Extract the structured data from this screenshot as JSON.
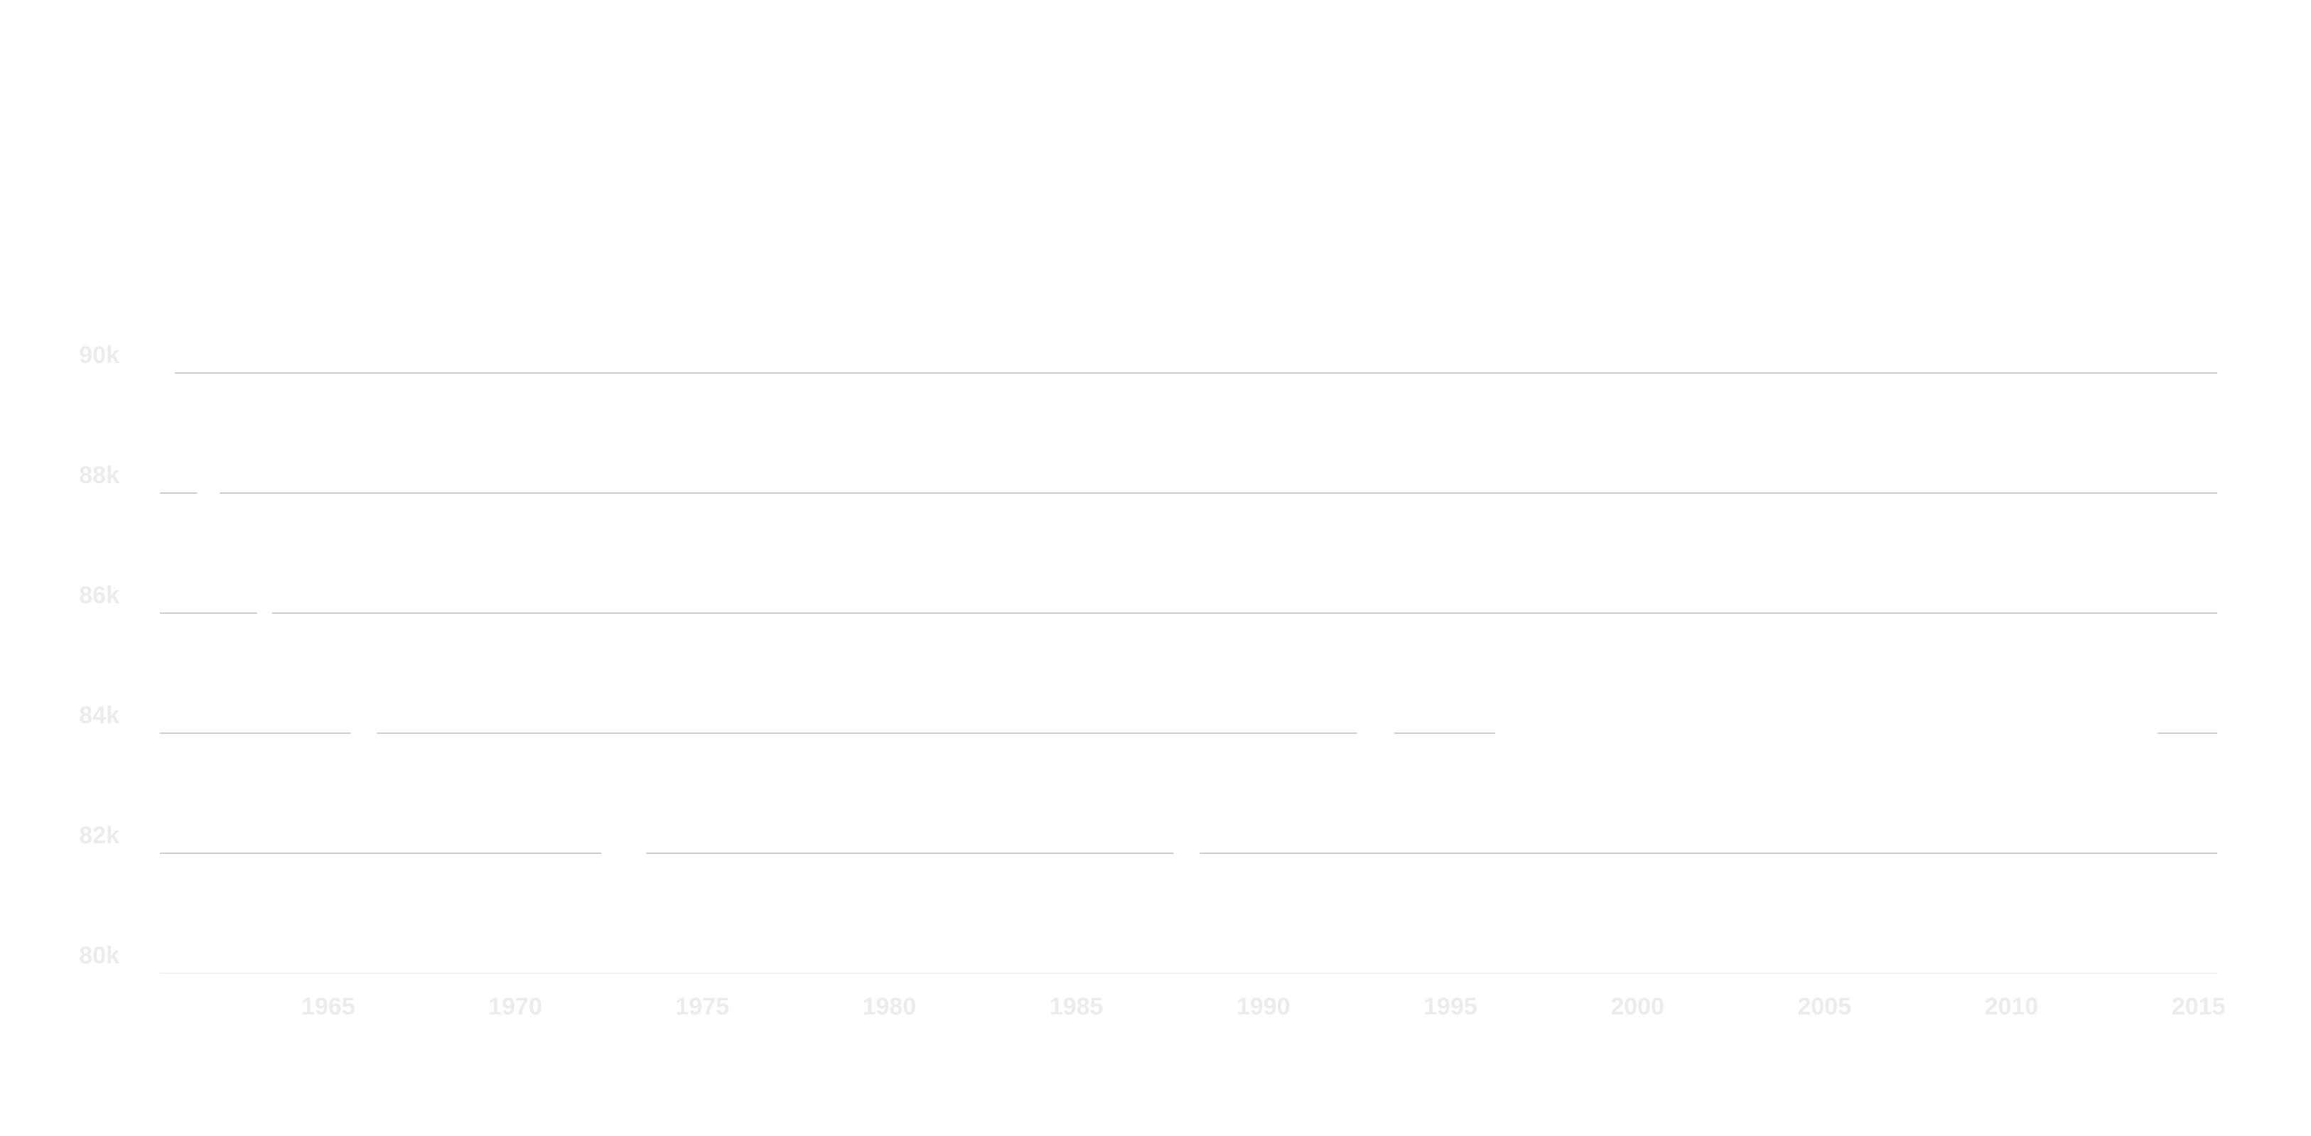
{
  "chart_data": {
    "type": "line",
    "title": "",
    "xlabel": "",
    "ylabel": "",
    "xlim": [
      1960.5,
      2015.5
    ],
    "ylim": [
      80000,
      90000
    ],
    "x_ticks": [
      1965,
      1970,
      1975,
      1980,
      1985,
      1990,
      1995,
      2000,
      2005,
      2010,
      2015
    ],
    "x_tick_labels": [
      "1965",
      "1970",
      "1975",
      "1980",
      "1985",
      "1990",
      "1995",
      "2000",
      "2005",
      "2010",
      "2015"
    ],
    "y_ticks": [
      80000,
      82000,
      84000,
      86000,
      88000,
      90000
    ],
    "y_tick_labels": [
      "80k",
      "82k",
      "84k",
      "86k",
      "88k",
      "90k"
    ],
    "grid": true,
    "colors": {
      "tick_label": "#ececec",
      "grid_strong": "#cfcfcf",
      "grid_faint": "#f2f2f2"
    },
    "legend": "none"
  }
}
